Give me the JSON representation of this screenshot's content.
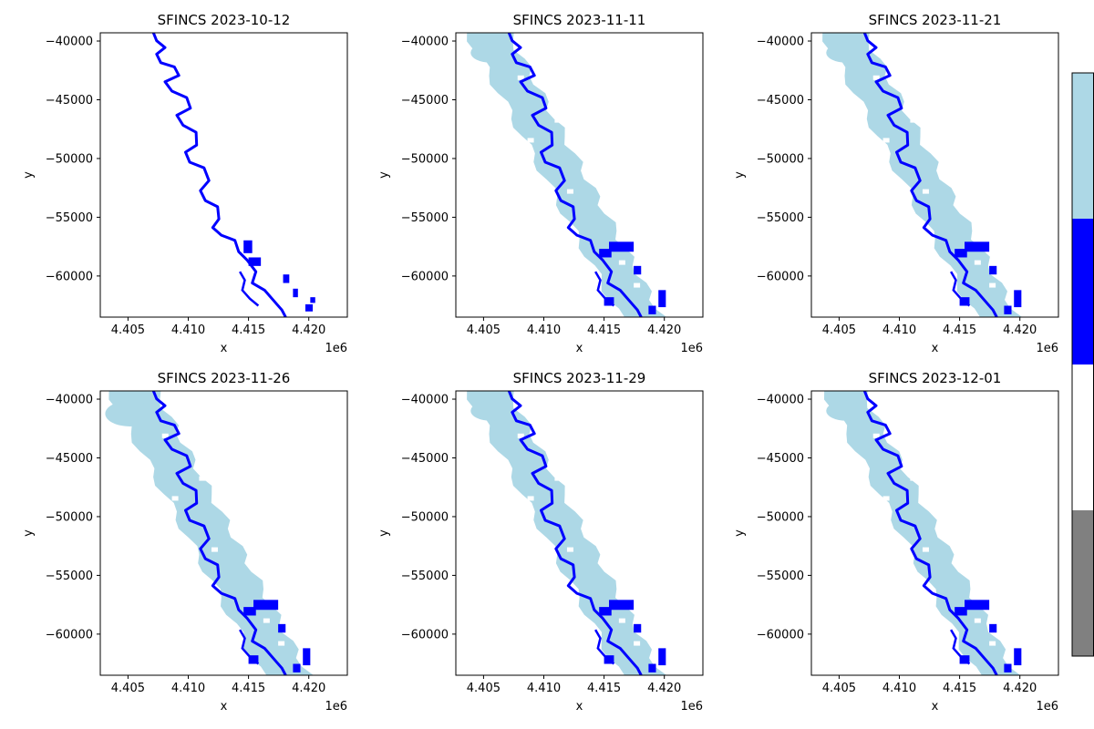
{
  "colors": {
    "river": "#0000ff",
    "flood": "#add8e6",
    "axis": "#000000",
    "colorbar_segments": [
      "#add8e6",
      "#0000ff",
      "#ffffff",
      "#808080"
    ]
  },
  "chart_data": [
    {
      "type": "map",
      "title": "SFINCS 2023-10-12",
      "xlabel": "x",
      "ylabel": "y",
      "x_offset_label": "1e6",
      "xlim": [
        4.4027,
        4.4232
      ],
      "ylim": [
        -63500,
        -39300
      ],
      "x_ticks": [
        4.405,
        4.41,
        4.415,
        4.42
      ],
      "x_tick_labels": [
        "4.405",
        "4.410",
        "4.415",
        "4.420"
      ],
      "y_ticks": [
        -40000,
        -45000,
        -50000,
        -55000,
        -60000
      ],
      "y_tick_labels": [
        "−40000",
        "−45000",
        "−50000",
        "−55000",
        "−60000"
      ],
      "flood_extent": "none"
    },
    {
      "type": "map",
      "title": "SFINCS 2023-11-11",
      "xlabel": "x",
      "ylabel": "y",
      "x_offset_label": "1e6",
      "xlim": [
        4.4027,
        4.4232
      ],
      "ylim": [
        -63500,
        -39300
      ],
      "x_ticks": [
        4.405,
        4.41,
        4.415,
        4.42
      ],
      "x_tick_labels": [
        "4.405",
        "4.410",
        "4.415",
        "4.420"
      ],
      "y_ticks": [
        -40000,
        -45000,
        -50000,
        -55000,
        -60000
      ],
      "y_tick_labels": [
        "−40000",
        "−45000",
        "−50000",
        "−55000",
        "−60000"
      ],
      "flood_extent": "wide"
    },
    {
      "type": "map",
      "title": "SFINCS 2023-11-21",
      "xlabel": "x",
      "ylabel": "y",
      "x_offset_label": "1e6",
      "xlim": [
        4.4027,
        4.4232
      ],
      "ylim": [
        -63500,
        -39300
      ],
      "x_ticks": [
        4.405,
        4.41,
        4.415,
        4.42
      ],
      "x_tick_labels": [
        "4.405",
        "4.410",
        "4.415",
        "4.420"
      ],
      "y_ticks": [
        -40000,
        -45000,
        -50000,
        -55000,
        -60000
      ],
      "y_tick_labels": [
        "−40000",
        "−45000",
        "−50000",
        "−55000",
        "−60000"
      ],
      "flood_extent": "wide"
    },
    {
      "type": "map",
      "title": "SFINCS 2023-11-26",
      "xlabel": "x",
      "ylabel": "y",
      "x_offset_label": "1e6",
      "xlim": [
        4.4027,
        4.4232
      ],
      "ylim": [
        -63500,
        -39300
      ],
      "x_ticks": [
        4.405,
        4.41,
        4.415,
        4.42
      ],
      "x_tick_labels": [
        "4.405",
        "4.410",
        "4.415",
        "4.420"
      ],
      "y_ticks": [
        -40000,
        -45000,
        -50000,
        -55000,
        -60000
      ],
      "y_tick_labels": [
        "−40000",
        "−45000",
        "−50000",
        "−55000",
        "−60000"
      ],
      "flood_extent": "widest"
    },
    {
      "type": "map",
      "title": "SFINCS 2023-11-29",
      "xlabel": "x",
      "ylabel": "y",
      "x_offset_label": "1e6",
      "xlim": [
        4.4027,
        4.4232
      ],
      "ylim": [
        -63500,
        -39300
      ],
      "x_ticks": [
        4.405,
        4.41,
        4.415,
        4.42
      ],
      "x_tick_labels": [
        "4.405",
        "4.410",
        "4.415",
        "4.420"
      ],
      "y_ticks": [
        -40000,
        -45000,
        -50000,
        -55000,
        -60000
      ],
      "y_tick_labels": [
        "−40000",
        "−45000",
        "−50000",
        "−55000",
        "−60000"
      ],
      "flood_extent": "wide"
    },
    {
      "type": "map",
      "title": "SFINCS 2023-12-01",
      "xlabel": "x",
      "ylabel": "y",
      "x_offset_label": "1e6",
      "xlim": [
        4.4027,
        4.4232
      ],
      "ylim": [
        -63500,
        -39300
      ],
      "x_ticks": [
        4.405,
        4.41,
        4.415,
        4.42
      ],
      "x_tick_labels": [
        "4.405",
        "4.410",
        "4.415",
        "4.420"
      ],
      "y_ticks": [
        -40000,
        -45000,
        -50000,
        -55000,
        -60000
      ],
      "y_tick_labels": [
        "−40000",
        "−45000",
        "−50000",
        "−55000",
        "−60000"
      ],
      "flood_extent": "narrower"
    }
  ]
}
